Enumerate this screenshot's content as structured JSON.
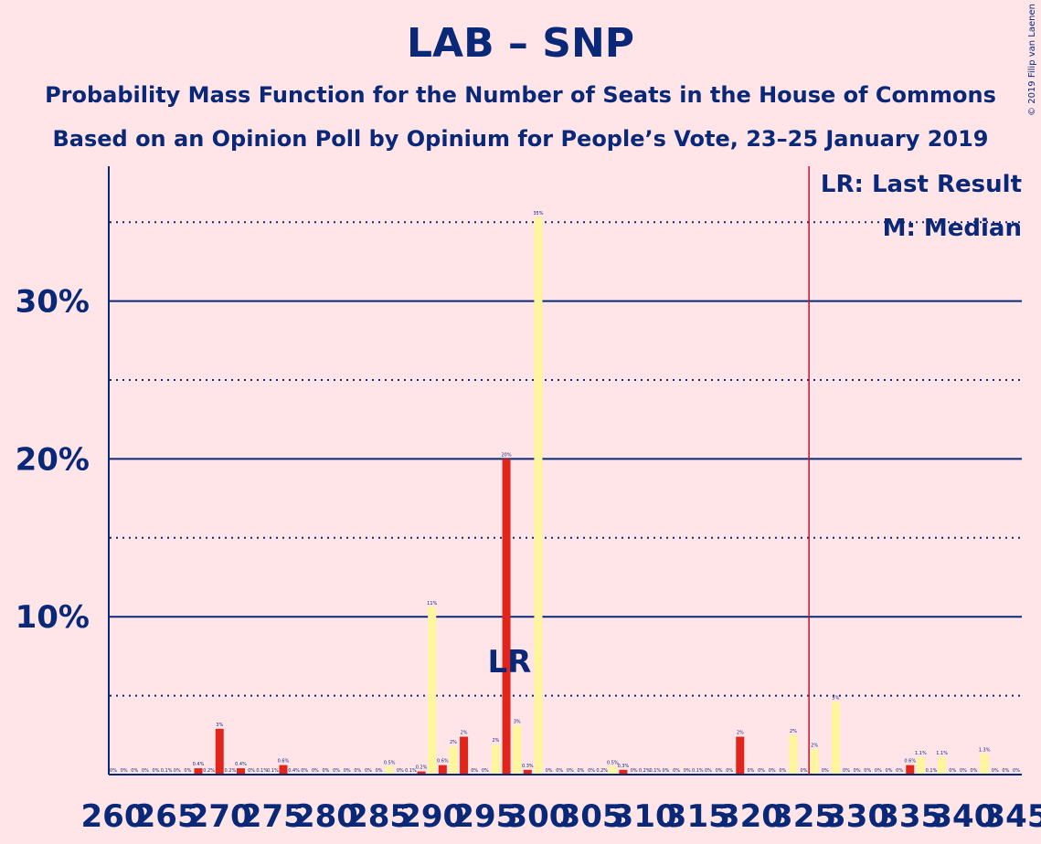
{
  "title": "LAB – SNP",
  "subtitle1": "Probability Mass Function for the Number of Seats in the House of Commons",
  "subtitle2": "Based on an Opinion Poll by Opinium for People’s Vote, 23–25 January 2019",
  "copyright": "© 2019 Filip van Laenen",
  "legend": {
    "last_result": "LR: Last Result",
    "median": "M: Median"
  },
  "markers": {
    "lr_label": "LR",
    "lr_seat": 296,
    "median_seat": 299,
    "majority_seat": 326
  },
  "colors": {
    "background": "#FFE5E8",
    "text": "#0A2878",
    "red_bars": "#E1251B",
    "yellow_bars": "#FFF59D",
    "majority_line": "#C8102E"
  },
  "chart_data": {
    "type": "bar",
    "xlabel": "",
    "ylabel": "",
    "ylim": [
      0,
      38
    ],
    "xlim": [
      260,
      345
    ],
    "x_ticks": [
      260,
      265,
      270,
      275,
      280,
      285,
      290,
      295,
      300,
      305,
      310,
      315,
      320,
      325,
      330,
      335,
      340,
      345
    ],
    "y_ticks": [
      {
        "value": 10,
        "label": "10%"
      },
      {
        "value": 20,
        "label": "20%"
      },
      {
        "value": 30,
        "label": "30%"
      }
    ],
    "y_dotted": [
      5,
      15,
      25,
      35
    ],
    "grid": true,
    "legend_position": "top-right",
    "series": [
      {
        "color": "red",
        "points": [
          {
            "seat": 268,
            "value": 0.4,
            "label": "0.4%"
          },
          {
            "seat": 270,
            "value": 2.9,
            "label": "3%"
          },
          {
            "seat": 272,
            "value": 0.4,
            "label": "0.4%"
          },
          {
            "seat": 276,
            "value": 0.6,
            "label": "0.6%"
          },
          {
            "seat": 289,
            "value": 0.2,
            "label": "0.2%"
          },
          {
            "seat": 291,
            "value": 0.6,
            "label": "0.6%"
          },
          {
            "seat": 293,
            "value": 2.4,
            "label": "2%"
          },
          {
            "seat": 297,
            "value": 20,
            "label": "20%"
          },
          {
            "seat": 299,
            "value": 0.3,
            "label": "0.3%"
          },
          {
            "seat": 308,
            "value": 0.3,
            "label": "0.3%"
          },
          {
            "seat": 319,
            "value": 2.4,
            "label": "2%"
          },
          {
            "seat": 335,
            "value": 0.6,
            "label": "0.6%"
          }
        ]
      },
      {
        "color": "yellow",
        "points": [
          {
            "seat": 286,
            "value": 0.5,
            "label": "0.5%"
          },
          {
            "seat": 290,
            "value": 10.6,
            "label": "11%"
          },
          {
            "seat": 292,
            "value": 1.8,
            "label": "2%"
          },
          {
            "seat": 296,
            "value": 1.9,
            "label": "2%"
          },
          {
            "seat": 298,
            "value": 3.1,
            "label": "3%"
          },
          {
            "seat": 300,
            "value": 35.3,
            "label": "35%"
          },
          {
            "seat": 307,
            "value": 0.5,
            "label": "0.5%"
          },
          {
            "seat": 324,
            "value": 2.5,
            "label": "2%"
          },
          {
            "seat": 326,
            "value": 1.6,
            "label": "2%"
          },
          {
            "seat": 328,
            "value": 4.6,
            "label": "5%"
          },
          {
            "seat": 336,
            "value": 1.1,
            "label": "1.1%"
          },
          {
            "seat": 338,
            "value": 1.1,
            "label": "1.1%"
          },
          {
            "seat": 342,
            "value": 1.3,
            "label": "1.3%"
          }
        ]
      }
    ],
    "small_labels": [
      {
        "seat": 260,
        "label": "0%"
      },
      {
        "seat": 261,
        "label": "0%"
      },
      {
        "seat": 262,
        "label": "0%"
      },
      {
        "seat": 263,
        "label": "0%"
      },
      {
        "seat": 264,
        "label": "0%"
      },
      {
        "seat": 265,
        "label": "0.1%"
      },
      {
        "seat": 266,
        "label": "0%"
      },
      {
        "seat": 267,
        "label": "0%"
      },
      {
        "seat": 269,
        "label": "0.2%"
      },
      {
        "seat": 271,
        "label": "0.2%"
      },
      {
        "seat": 273,
        "label": "0%"
      },
      {
        "seat": 274,
        "label": "0.1%"
      },
      {
        "seat": 275,
        "label": "0.1%"
      },
      {
        "seat": 277,
        "label": "0.4%"
      },
      {
        "seat": 278,
        "label": "0%"
      },
      {
        "seat": 279,
        "label": "0%"
      },
      {
        "seat": 280,
        "label": "0%"
      },
      {
        "seat": 281,
        "label": "0%"
      },
      {
        "seat": 282,
        "label": "0%"
      },
      {
        "seat": 283,
        "label": "0%"
      },
      {
        "seat": 284,
        "label": "0%"
      },
      {
        "seat": 285,
        "label": "0%"
      },
      {
        "seat": 287,
        "label": "0%"
      },
      {
        "seat": 288,
        "label": "0.1%"
      },
      {
        "seat": 294,
        "label": "0%"
      },
      {
        "seat": 295,
        "label": "0%"
      },
      {
        "seat": 301,
        "label": "0%"
      },
      {
        "seat": 302,
        "label": "0%"
      },
      {
        "seat": 303,
        "label": "0%"
      },
      {
        "seat": 304,
        "label": "0%"
      },
      {
        "seat": 305,
        "label": "0%"
      },
      {
        "seat": 306,
        "label": "0.2%"
      },
      {
        "seat": 309,
        "label": "0%"
      },
      {
        "seat": 310,
        "label": "0.2%"
      },
      {
        "seat": 311,
        "label": "0.1%"
      },
      {
        "seat": 312,
        "label": "0%"
      },
      {
        "seat": 313,
        "label": "0%"
      },
      {
        "seat": 314,
        "label": "0%"
      },
      {
        "seat": 315,
        "label": "0.1%"
      },
      {
        "seat": 316,
        "label": "0%"
      },
      {
        "seat": 317,
        "label": "0%"
      },
      {
        "seat": 318,
        "label": "0%"
      },
      {
        "seat": 320,
        "label": "0%"
      },
      {
        "seat": 321,
        "label": "0%"
      },
      {
        "seat": 322,
        "label": "0%"
      },
      {
        "seat": 323,
        "label": "0%"
      },
      {
        "seat": 325,
        "label": "0%"
      },
      {
        "seat": 327,
        "label": "0%"
      },
      {
        "seat": 329,
        "label": "0%"
      },
      {
        "seat": 330,
        "label": "0%"
      },
      {
        "seat": 331,
        "label": "0%"
      },
      {
        "seat": 332,
        "label": "0%"
      },
      {
        "seat": 333,
        "label": "0%"
      },
      {
        "seat": 334,
        "label": "0%"
      },
      {
        "seat": 337,
        "label": "0.1%"
      },
      {
        "seat": 339,
        "label": "0%"
      },
      {
        "seat": 340,
        "label": "0%"
      },
      {
        "seat": 341,
        "label": "0%"
      },
      {
        "seat": 343,
        "label": "0%"
      },
      {
        "seat": 344,
        "label": "0%"
      },
      {
        "seat": 345,
        "label": "0%"
      }
    ]
  }
}
